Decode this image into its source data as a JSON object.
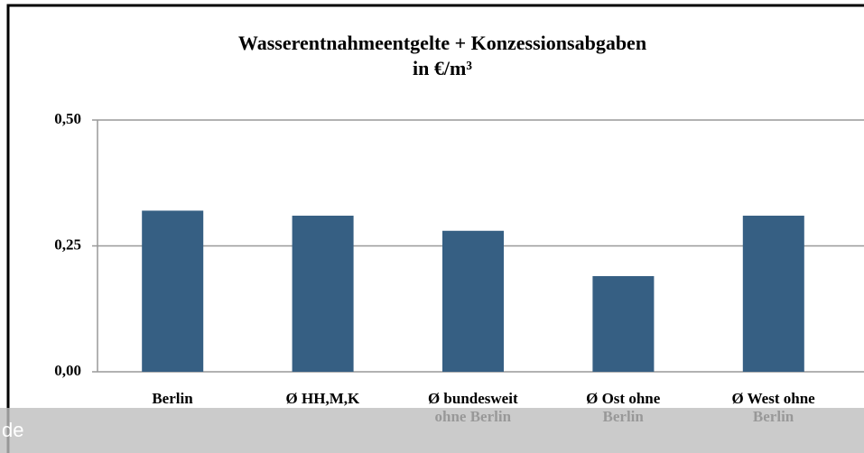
{
  "chart_data": {
    "type": "bar",
    "title": "Wasserentnahmeentgelte + Konzessionsabgaben",
    "subtitle": "in €/m³",
    "categories": [
      "Berlin",
      "Ø HH,M,K",
      "Ø bundesweit\nohne Berlin",
      "Ø Ost ohne\nBerlin",
      "Ø West ohne\nBerlin"
    ],
    "values": [
      0.32,
      0.31,
      0.28,
      0.19,
      0.31
    ],
    "color": "#365f83",
    "ylim": [
      0,
      0.5
    ],
    "yticks": [
      {
        "value": 0,
        "label": "0,00"
      },
      {
        "value": 0.25,
        "label": "0,25"
      },
      {
        "value": 0.5,
        "label": "0,50"
      }
    ],
    "grid": true
  },
  "footer_text": "de"
}
